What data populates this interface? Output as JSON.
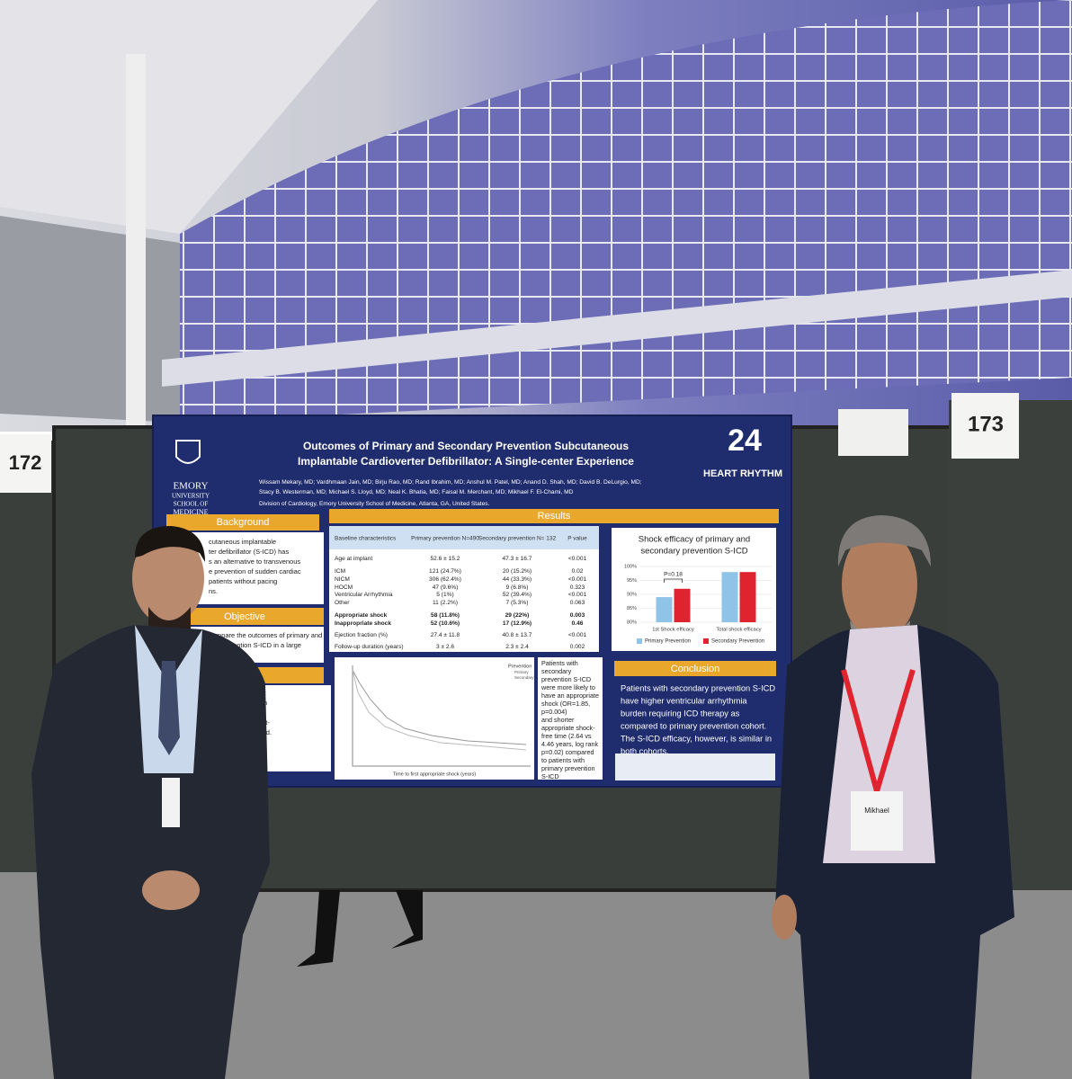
{
  "booths": [
    "172",
    "173"
  ],
  "badge": "Mikhael",
  "poster": {
    "title": [
      "Outcomes of Primary and Secondary Prevention Subcutaneous",
      "Implantable Cardioverter Defibrillator: A Single-center Experience"
    ],
    "authors": [
      "Wissam Mekary, MD; Vardhmaan Jain, MD; Birju Rao, MD; Rand Ibrahim, MD; Anshul M. Patel, MD; Anand D. Shah, MD; David B. DeLurgio, MD;",
      "Stacy B. Westerman, MD; Michael S. Lloyd, MD; Neal K. Bhatia, MD; Faisal M. Merchant, MD; Mikhael F. El-Chami, MD"
    ],
    "affiliation": "Division of Cardiology, Emory University School of Medicine, Atlanta, GA, United States.",
    "logo_left": [
      "EMORY",
      "UNIVERSITY",
      "SCHOOL OF",
      "MEDICINE"
    ],
    "logo_right": {
      "mark": "24",
      "name": "HEART RHYTHM"
    },
    "background": {
      "heading": "Background",
      "text": [
        "cutaneous implantable",
        "ter defibrillator (S-ICD) has",
        "s an alternative to transvenous",
        "e prevention of sudden cardiac",
        "patients without pacing",
        "ns."
      ]
    },
    "objective": {
      "heading": "Objective",
      "text": [
        "compare the outcomes of primary and",
        "ary prevention S-ICD in a large",
        "tients."
      ]
    },
    "methods": {
      "heading": "hods",
      "text": [
        "we followed 622",
        "planted between",
        "characteristics,",
        "ntation, and post-",
        "ns were collected.",
        "ere manually",
        "incidence of",
        "shock efficacy."
      ]
    },
    "results": {
      "heading": "Results",
      "table": {
        "header": [
          "Baseline characteristics",
          "Primary prevention N=490",
          "Secondary prevention N= 132",
          "P value"
        ],
        "rows": [
          [
            "Age at implant",
            "52.6 ± 15.2",
            "47.3 ± 16.7",
            "<0.001"
          ],
          [
            "ICM",
            "121 (24.7%)",
            "20 (15.2%)",
            "0.02"
          ],
          [
            "NICM",
            "306 (62.4%)",
            "44 (33.3%)",
            "<0.001"
          ],
          [
            "HOCM",
            "47 (9.6%)",
            "9 (6.8%)",
            "0.323"
          ],
          [
            "Ventricular Arrhythmia",
            "5 (1%)",
            "52 (39.4%)",
            "<0.001"
          ],
          [
            "Other",
            "11 (2.2%)",
            "7 (5.3%)",
            "0.063"
          ],
          [
            "Appropriate shock",
            "58 (11.8%)",
            "29 (22%)",
            "0.003"
          ],
          [
            "Inappropriate shock",
            "52 (10.6%)",
            "17 (12.9%)",
            "0.46"
          ],
          [
            "Ejection fraction (%)",
            "27.4 ± 11.8",
            "40.8 ± 13.7",
            "<0.001"
          ],
          [
            "Follow-up duration (years)",
            "3 ± 2.6",
            "2.3 ± 2.4",
            "0.002"
          ]
        ]
      },
      "km": {
        "legend_title": "Prevention",
        "legend": [
          "Primary",
          "Secondary"
        ],
        "x_label": "Time to first appropriate shock (years)"
      },
      "finding": [
        "Patients with",
        "secondary",
        "prevention S-ICD",
        "were more likely to",
        "have an appropriate",
        "shock (OR=1.85,",
        "p=0.004)",
        "and shorter",
        "appropriate shock-",
        "free time (2.64 vs",
        "4.46 years, log rank",
        "p=0.02) compared",
        "to patients with",
        "primary prevention",
        "S-ICD"
      ]
    },
    "chart": {
      "type": "bar",
      "title": [
        "Shock efficacy of primary and",
        "secondary prevention S-ICD"
      ],
      "categories": [
        "1st Shock efficacy",
        "Total shock efficacy"
      ],
      "series": [
        {
          "name": "Primary Prevention",
          "color": "#8fc3e8",
          "values": [
            89,
            98
          ]
        },
        {
          "name": "Secondary Prevention",
          "color": "#e0242f",
          "values": [
            92,
            98
          ]
        }
      ],
      "ylim": [
        80,
        100
      ],
      "yticks": [
        {
          "value": 80,
          "label": "80%"
        },
        {
          "value": 85,
          "label": "85%"
        },
        {
          "value": 90,
          "label": "90%"
        },
        {
          "value": 95,
          "label": "95%"
        },
        {
          "value": 100,
          "label": "100%"
        }
      ],
      "grid": true,
      "annotation": "P=0.18"
    },
    "conclusion": {
      "heading": "Conclusion",
      "text": [
        "Patients with secondary prevention S-ICD",
        "have higher ventricular arrhythmia",
        "burden requiring ICD therapy as",
        "compared to primary prevention cohort.",
        "The S-ICD efficacy, however, is similar in",
        "both cohorts."
      ]
    }
  }
}
